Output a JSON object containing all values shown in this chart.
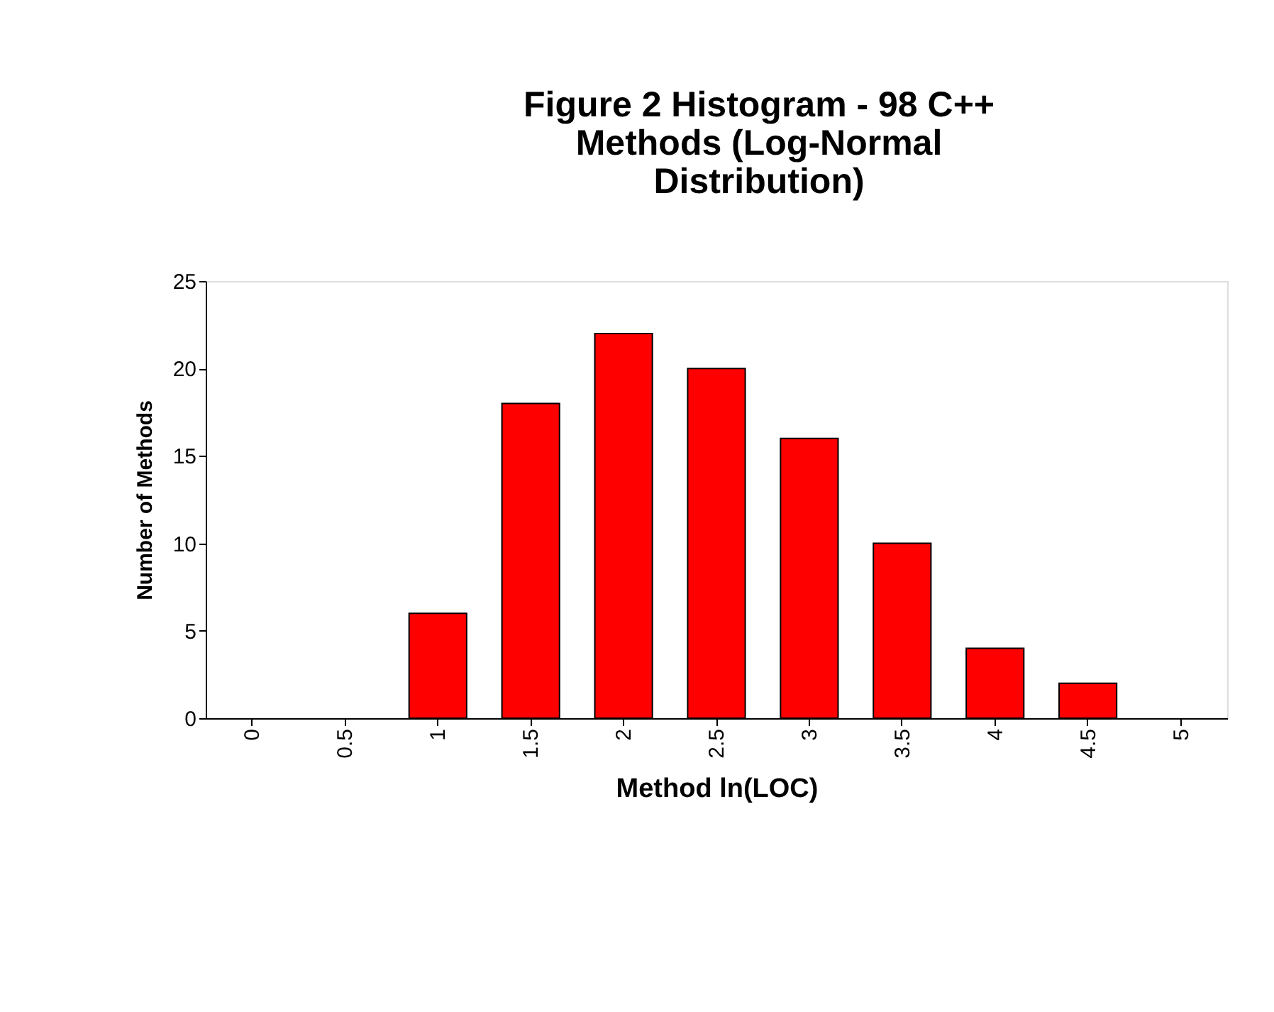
{
  "chart_data": {
    "type": "bar",
    "title": "Figure 2  Histogram - 98 C++ Methods      (Log-Normal Distribution)",
    "xlabel": "Method ln(LOC)",
    "ylabel": "Number of Methods",
    "categories": [
      "0",
      "0.5",
      "1",
      "1.5",
      "2",
      "2.5",
      "3",
      "3.5",
      "4",
      "4.5",
      "5"
    ],
    "values": [
      0,
      0,
      6,
      18,
      22,
      20,
      16,
      10,
      4,
      2,
      0
    ],
    "color": "#ff0000",
    "ylim": [
      0,
      25
    ],
    "yticks": [
      0,
      5,
      10,
      15,
      20,
      25
    ],
    "grid": false
  }
}
